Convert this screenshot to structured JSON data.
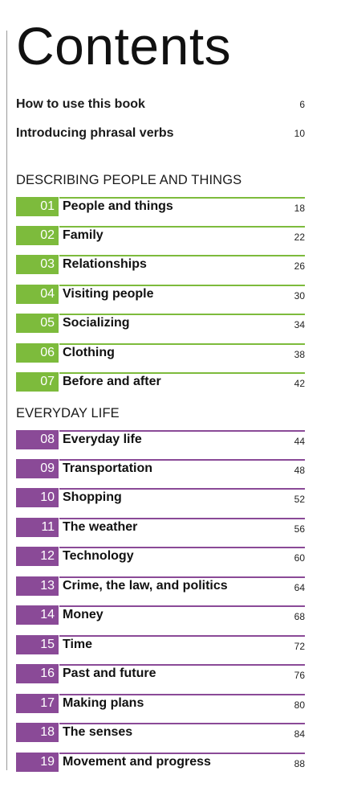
{
  "title": "Contents",
  "intro": [
    {
      "label": "How to use this book",
      "page": "6"
    },
    {
      "label": "Introducing phrasal verbs",
      "page": "10"
    }
  ],
  "sections": [
    {
      "title": "DESCRIBING PEOPLE AND THINGS"
    },
    {
      "title": "EVERYDAY LIFE"
    }
  ],
  "colors": {
    "green": "#7dbb3c",
    "purple": "#8a4a97"
  },
  "chapters": [
    {
      "num": "01",
      "label": "People and things",
      "page": "18"
    },
    {
      "num": "02",
      "label": "Family",
      "page": "22"
    },
    {
      "num": "03",
      "label": "Relationships",
      "page": "26"
    },
    {
      "num": "04",
      "label": "Visiting people",
      "page": "30"
    },
    {
      "num": "05",
      "label": "Socializing",
      "page": "34"
    },
    {
      "num": "06",
      "label": "Clothing",
      "page": "38"
    },
    {
      "num": "07",
      "label": "Before and after",
      "page": "42"
    },
    {
      "num": "08",
      "label": "Everyday life",
      "page": "44"
    },
    {
      "num": "09",
      "label": "Transportation",
      "page": "48"
    },
    {
      "num": "10",
      "label": "Shopping",
      "page": "52"
    },
    {
      "num": "11",
      "label": "The weather",
      "page": "56"
    },
    {
      "num": "12",
      "label": "Technology",
      "page": "60"
    },
    {
      "num": "13",
      "label": "Crime, the law, and politics",
      "page": "64"
    },
    {
      "num": "14",
      "label": "Money",
      "page": "68"
    },
    {
      "num": "15",
      "label": "Time",
      "page": "72"
    },
    {
      "num": "16",
      "label": "Past and future",
      "page": "76"
    },
    {
      "num": "17",
      "label": "Making plans",
      "page": "80"
    },
    {
      "num": "18",
      "label": "The senses",
      "page": "84"
    },
    {
      "num": "19",
      "label": "Movement and progress",
      "page": "88"
    }
  ]
}
